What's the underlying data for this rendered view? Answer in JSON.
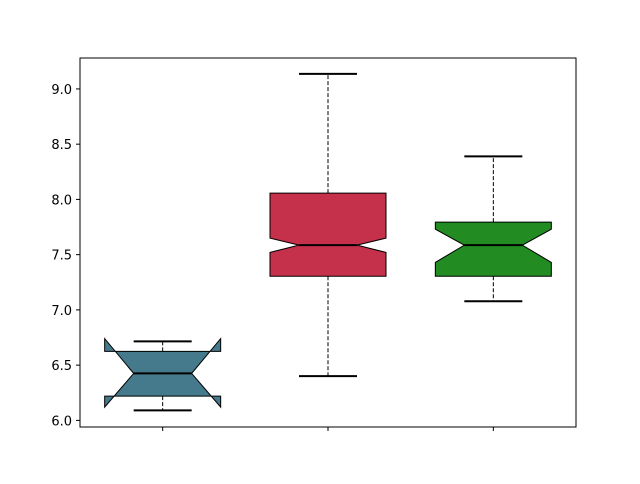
{
  "chart_data": {
    "type": "boxplot",
    "notched": true,
    "title": "",
    "xlabel": "",
    "ylabel": "",
    "ylim": [
      5.94,
      9.28
    ],
    "yticks": [
      "6.0",
      "6.5",
      "7.0",
      "7.5",
      "8.0",
      "8.5",
      "9.0"
    ],
    "xtick_labels": [
      "",
      "",
      ""
    ],
    "grid": false,
    "boxes": [
      {
        "whisker_low": 6.09,
        "q1": 6.22,
        "median": 6.425,
        "q3": 6.625,
        "whisker_high": 6.715,
        "notch_low": 6.12,
        "notch_high": 6.74,
        "color": "#447a8b"
      },
      {
        "whisker_low": 6.4,
        "q1": 7.305,
        "median": 7.586,
        "q3": 8.057,
        "whisker_high": 9.136,
        "notch_low": 7.52,
        "notch_high": 7.65,
        "color": "#c5304a"
      },
      {
        "whisker_low": 7.078,
        "q1": 7.305,
        "median": 7.586,
        "q3": 7.794,
        "whisker_high": 8.39,
        "notch_low": 7.43,
        "notch_high": 7.73,
        "color": "#228b22"
      }
    ]
  }
}
